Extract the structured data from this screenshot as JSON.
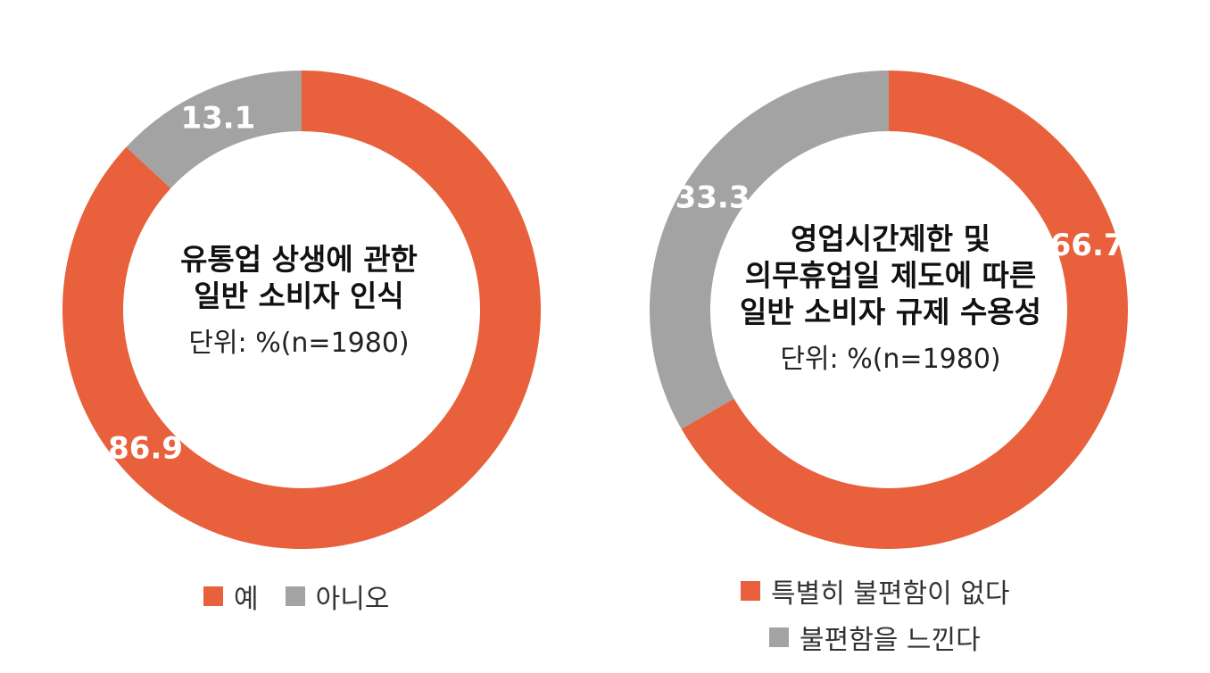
{
  "colors": {
    "yes": "#E8603C",
    "no": "#A3A3A3",
    "label": "#FFFFFF"
  },
  "chart_data": [
    {
      "type": "pie",
      "title_lines": [
        "유통업 상생에 관한",
        "일반 소비자 인식"
      ],
      "unit": "단위: %(n=1980)",
      "categories": [
        "예",
        "아니오"
      ],
      "values": [
        86.9,
        13.1
      ],
      "value_labels": [
        "86.9",
        "13.1"
      ],
      "legend": [
        "예",
        "아니오"
      ],
      "legend_placement": "bottom"
    },
    {
      "type": "pie",
      "title_lines": [
        "영업시간제한 및",
        "의무휴업일 제도에 따른",
        "일반 소비자 규제 수용성"
      ],
      "unit": "단위: %(n=1980)",
      "categories": [
        "특별히 불편함이 없다",
        "불편함을 느낀다"
      ],
      "values": [
        66.7,
        33.3
      ],
      "value_labels": [
        "66.7",
        "33.3"
      ],
      "legend": [
        "특별히 불편함이 없다",
        "불편함을 느낀다"
      ],
      "legend_placement": "bottom"
    }
  ]
}
